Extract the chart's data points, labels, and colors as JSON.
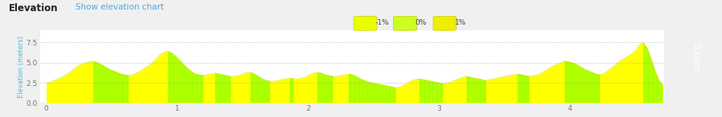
{
  "title": "Elevation",
  "subtitle": "Show elevation chart",
  "ylabel": "Elevation (meters)",
  "yticks": [
    0,
    2.5,
    5,
    7.5
  ],
  "ylim": [
    0,
    9.0
  ],
  "xlim": [
    -0.05,
    4.72
  ],
  "xticks": [
    0,
    1,
    2,
    3,
    4
  ],
  "bg_color": "#f0f0f0",
  "plot_bg": "#ffffff",
  "grid_color": "#aaaaaa",
  "title_color": "#222222",
  "subtitle_color": "#4aabdb",
  "axis_label_color": "#5ab4d6",
  "tick_color": "#777777",
  "legend_labels": [
    "-1%",
    "0%",
    "1%"
  ],
  "legend_colors": [
    "#e8ff00",
    "#ccff22",
    "#eeee00"
  ],
  "x": [
    0.0,
    0.03,
    0.06,
    0.09,
    0.12,
    0.15,
    0.18,
    0.21,
    0.24,
    0.27,
    0.3,
    0.33,
    0.36,
    0.39,
    0.42,
    0.45,
    0.48,
    0.51,
    0.54,
    0.57,
    0.6,
    0.63,
    0.66,
    0.69,
    0.72,
    0.75,
    0.78,
    0.81,
    0.84,
    0.87,
    0.9,
    0.93,
    0.96,
    0.99,
    1.02,
    1.05,
    1.08,
    1.11,
    1.14,
    1.17,
    1.2,
    1.23,
    1.26,
    1.29,
    1.32,
    1.35,
    1.38,
    1.41,
    1.44,
    1.47,
    1.5,
    1.53,
    1.56,
    1.59,
    1.62,
    1.65,
    1.68,
    1.71,
    1.74,
    1.77,
    1.8,
    1.83,
    1.86,
    1.89,
    1.92,
    1.95,
    1.98,
    2.01,
    2.04,
    2.07,
    2.1,
    2.13,
    2.16,
    2.19,
    2.22,
    2.25,
    2.28,
    2.31,
    2.34,
    2.37,
    2.4,
    2.43,
    2.46,
    2.49,
    2.52,
    2.55,
    2.58,
    2.61,
    2.64,
    2.67,
    2.7,
    2.73,
    2.76,
    2.79,
    2.82,
    2.85,
    2.88,
    2.91,
    2.94,
    2.97,
    3.0,
    3.03,
    3.06,
    3.09,
    3.12,
    3.15,
    3.18,
    3.21,
    3.24,
    3.27,
    3.3,
    3.33,
    3.36,
    3.39,
    3.42,
    3.45,
    3.48,
    3.51,
    3.54,
    3.57,
    3.6,
    3.63,
    3.66,
    3.69,
    3.72,
    3.75,
    3.78,
    3.81,
    3.84,
    3.87,
    3.9,
    3.93,
    3.96,
    3.99,
    4.02,
    4.05,
    4.08,
    4.11,
    4.14,
    4.17,
    4.2,
    4.23,
    4.26,
    4.29,
    4.32,
    4.35,
    4.38,
    4.41,
    4.44,
    4.47,
    4.5,
    4.53,
    4.56,
    4.59,
    4.62,
    4.65,
    4.68,
    4.71
  ],
  "y": [
    2.5,
    2.6,
    2.8,
    3.0,
    3.2,
    3.5,
    3.8,
    4.2,
    4.6,
    4.8,
    5.0,
    5.1,
    5.2,
    5.0,
    4.8,
    4.5,
    4.2,
    4.0,
    3.8,
    3.6,
    3.5,
    3.4,
    3.5,
    3.7,
    4.0,
    4.3,
    4.6,
    5.0,
    5.5,
    6.0,
    6.3,
    6.4,
    6.2,
    5.8,
    5.3,
    4.8,
    4.3,
    3.9,
    3.6,
    3.5,
    3.4,
    3.5,
    3.6,
    3.7,
    3.6,
    3.5,
    3.4,
    3.3,
    3.3,
    3.4,
    3.6,
    3.8,
    3.8,
    3.6,
    3.3,
    3.0,
    2.8,
    2.7,
    2.7,
    2.8,
    2.9,
    3.0,
    3.1,
    3.0,
    3.0,
    3.1,
    3.2,
    3.5,
    3.7,
    3.8,
    3.7,
    3.5,
    3.4,
    3.3,
    3.3,
    3.4,
    3.5,
    3.6,
    3.5,
    3.3,
    3.0,
    2.8,
    2.6,
    2.5,
    2.4,
    2.3,
    2.2,
    2.1,
    2.0,
    1.9,
    2.0,
    2.2,
    2.5,
    2.8,
    2.9,
    3.0,
    2.9,
    2.8,
    2.7,
    2.6,
    2.5,
    2.4,
    2.5,
    2.6,
    2.8,
    3.0,
    3.2,
    3.3,
    3.2,
    3.1,
    3.0,
    2.9,
    2.8,
    2.9,
    3.0,
    3.1,
    3.2,
    3.3,
    3.4,
    3.5,
    3.6,
    3.5,
    3.4,
    3.3,
    3.4,
    3.5,
    3.7,
    4.0,
    4.3,
    4.6,
    4.8,
    5.0,
    5.2,
    5.1,
    5.0,
    4.8,
    4.5,
    4.2,
    4.0,
    3.8,
    3.6,
    3.5,
    3.7,
    4.0,
    4.4,
    4.8,
    5.2,
    5.5,
    5.8,
    6.1,
    6.5,
    7.2,
    7.5,
    6.8,
    5.5,
    4.0,
    2.8,
    2.2
  ],
  "fill_color_main": "#ffff00",
  "fill_color_green": "#aaff00",
  "line_color": "#dddd00",
  "sidebar_color": "#1a1a1a",
  "sidebar_text": "Support"
}
